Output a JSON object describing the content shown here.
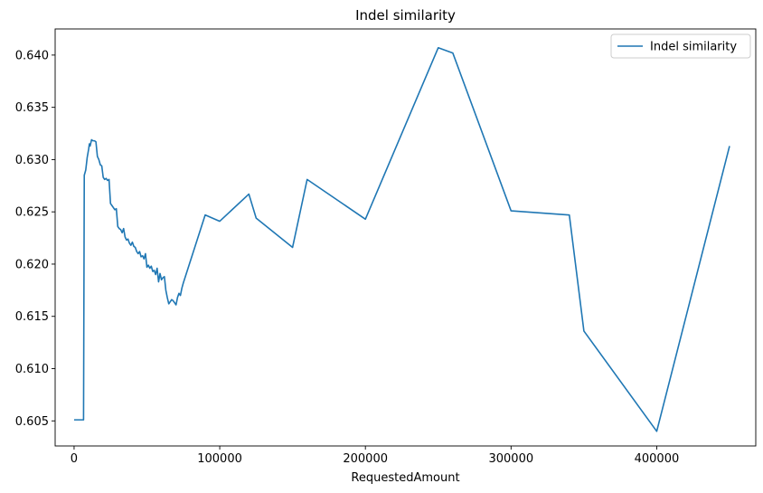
{
  "chart_data": {
    "type": "line",
    "title": "Indel similarity",
    "xlabel": "RequestedAmount",
    "ylabel": "",
    "xlim": [
      -13000,
      468000
    ],
    "ylim": [
      0.6026,
      0.6425
    ],
    "xticks": [
      0,
      100000,
      200000,
      300000,
      400000
    ],
    "yticks": [
      0.605,
      0.61,
      0.615,
      0.62,
      0.625,
      0.63,
      0.635,
      0.64
    ],
    "grid": false,
    "legend_position": "top-right",
    "series": [
      {
        "name": "Indel similarity",
        "color": "#1f77b4",
        "x": [
          0,
          3000,
          6500,
          7000,
          8000,
          9000,
          10000,
          10500,
          11000,
          12000,
          13000,
          14000,
          15000,
          16000,
          17000,
          18000,
          19000,
          20000,
          21000,
          22000,
          23000,
          24000,
          25000,
          26000,
          27000,
          28000,
          29000,
          30000,
          31000,
          32000,
          33000,
          34000,
          35000,
          36000,
          37000,
          38000,
          39000,
          40000,
          41000,
          42000,
          43000,
          44000,
          45000,
          46000,
          47000,
          48000,
          49000,
          50000,
          51000,
          52000,
          53000,
          54000,
          55000,
          56000,
          57000,
          58000,
          59000,
          60000,
          61000,
          62000,
          63000,
          64000,
          65000,
          66000,
          67000,
          68000,
          69000,
          70000,
          71000,
          72000,
          73000,
          74000,
          75000,
          90000,
          100000,
          120000,
          125000,
          150000,
          160000,
          200000,
          250000,
          260000,
          300000,
          340000,
          350000,
          400000,
          450000
        ],
        "y": [
          0.6051,
          0.6051,
          0.6051,
          0.6285,
          0.629,
          0.6302,
          0.631,
          0.6315,
          0.6313,
          0.6319,
          0.6318,
          0.6318,
          0.6317,
          0.6303,
          0.63,
          0.6295,
          0.6294,
          0.6283,
          0.6281,
          0.6282,
          0.628,
          0.6281,
          0.6258,
          0.6256,
          0.6254,
          0.6252,
          0.6253,
          0.6236,
          0.6234,
          0.6233,
          0.623,
          0.6234,
          0.6226,
          0.6223,
          0.6224,
          0.622,
          0.6218,
          0.6221,
          0.6217,
          0.6216,
          0.6212,
          0.621,
          0.6212,
          0.6207,
          0.6208,
          0.6205,
          0.621,
          0.6197,
          0.6199,
          0.6196,
          0.6198,
          0.6193,
          0.6194,
          0.619,
          0.6196,
          0.6183,
          0.6191,
          0.6185,
          0.6187,
          0.6188,
          0.6175,
          0.6168,
          0.6162,
          0.6164,
          0.6166,
          0.6165,
          0.6163,
          0.6161,
          0.6168,
          0.6172,
          0.617,
          0.6177,
          0.6182,
          0.6247,
          0.6241,
          0.6267,
          0.6244,
          0.6216,
          0.6281,
          0.6243,
          0.6407,
          0.6402,
          0.6251,
          0.6247,
          0.6136,
          0.604,
          0.6313
        ]
      }
    ]
  }
}
